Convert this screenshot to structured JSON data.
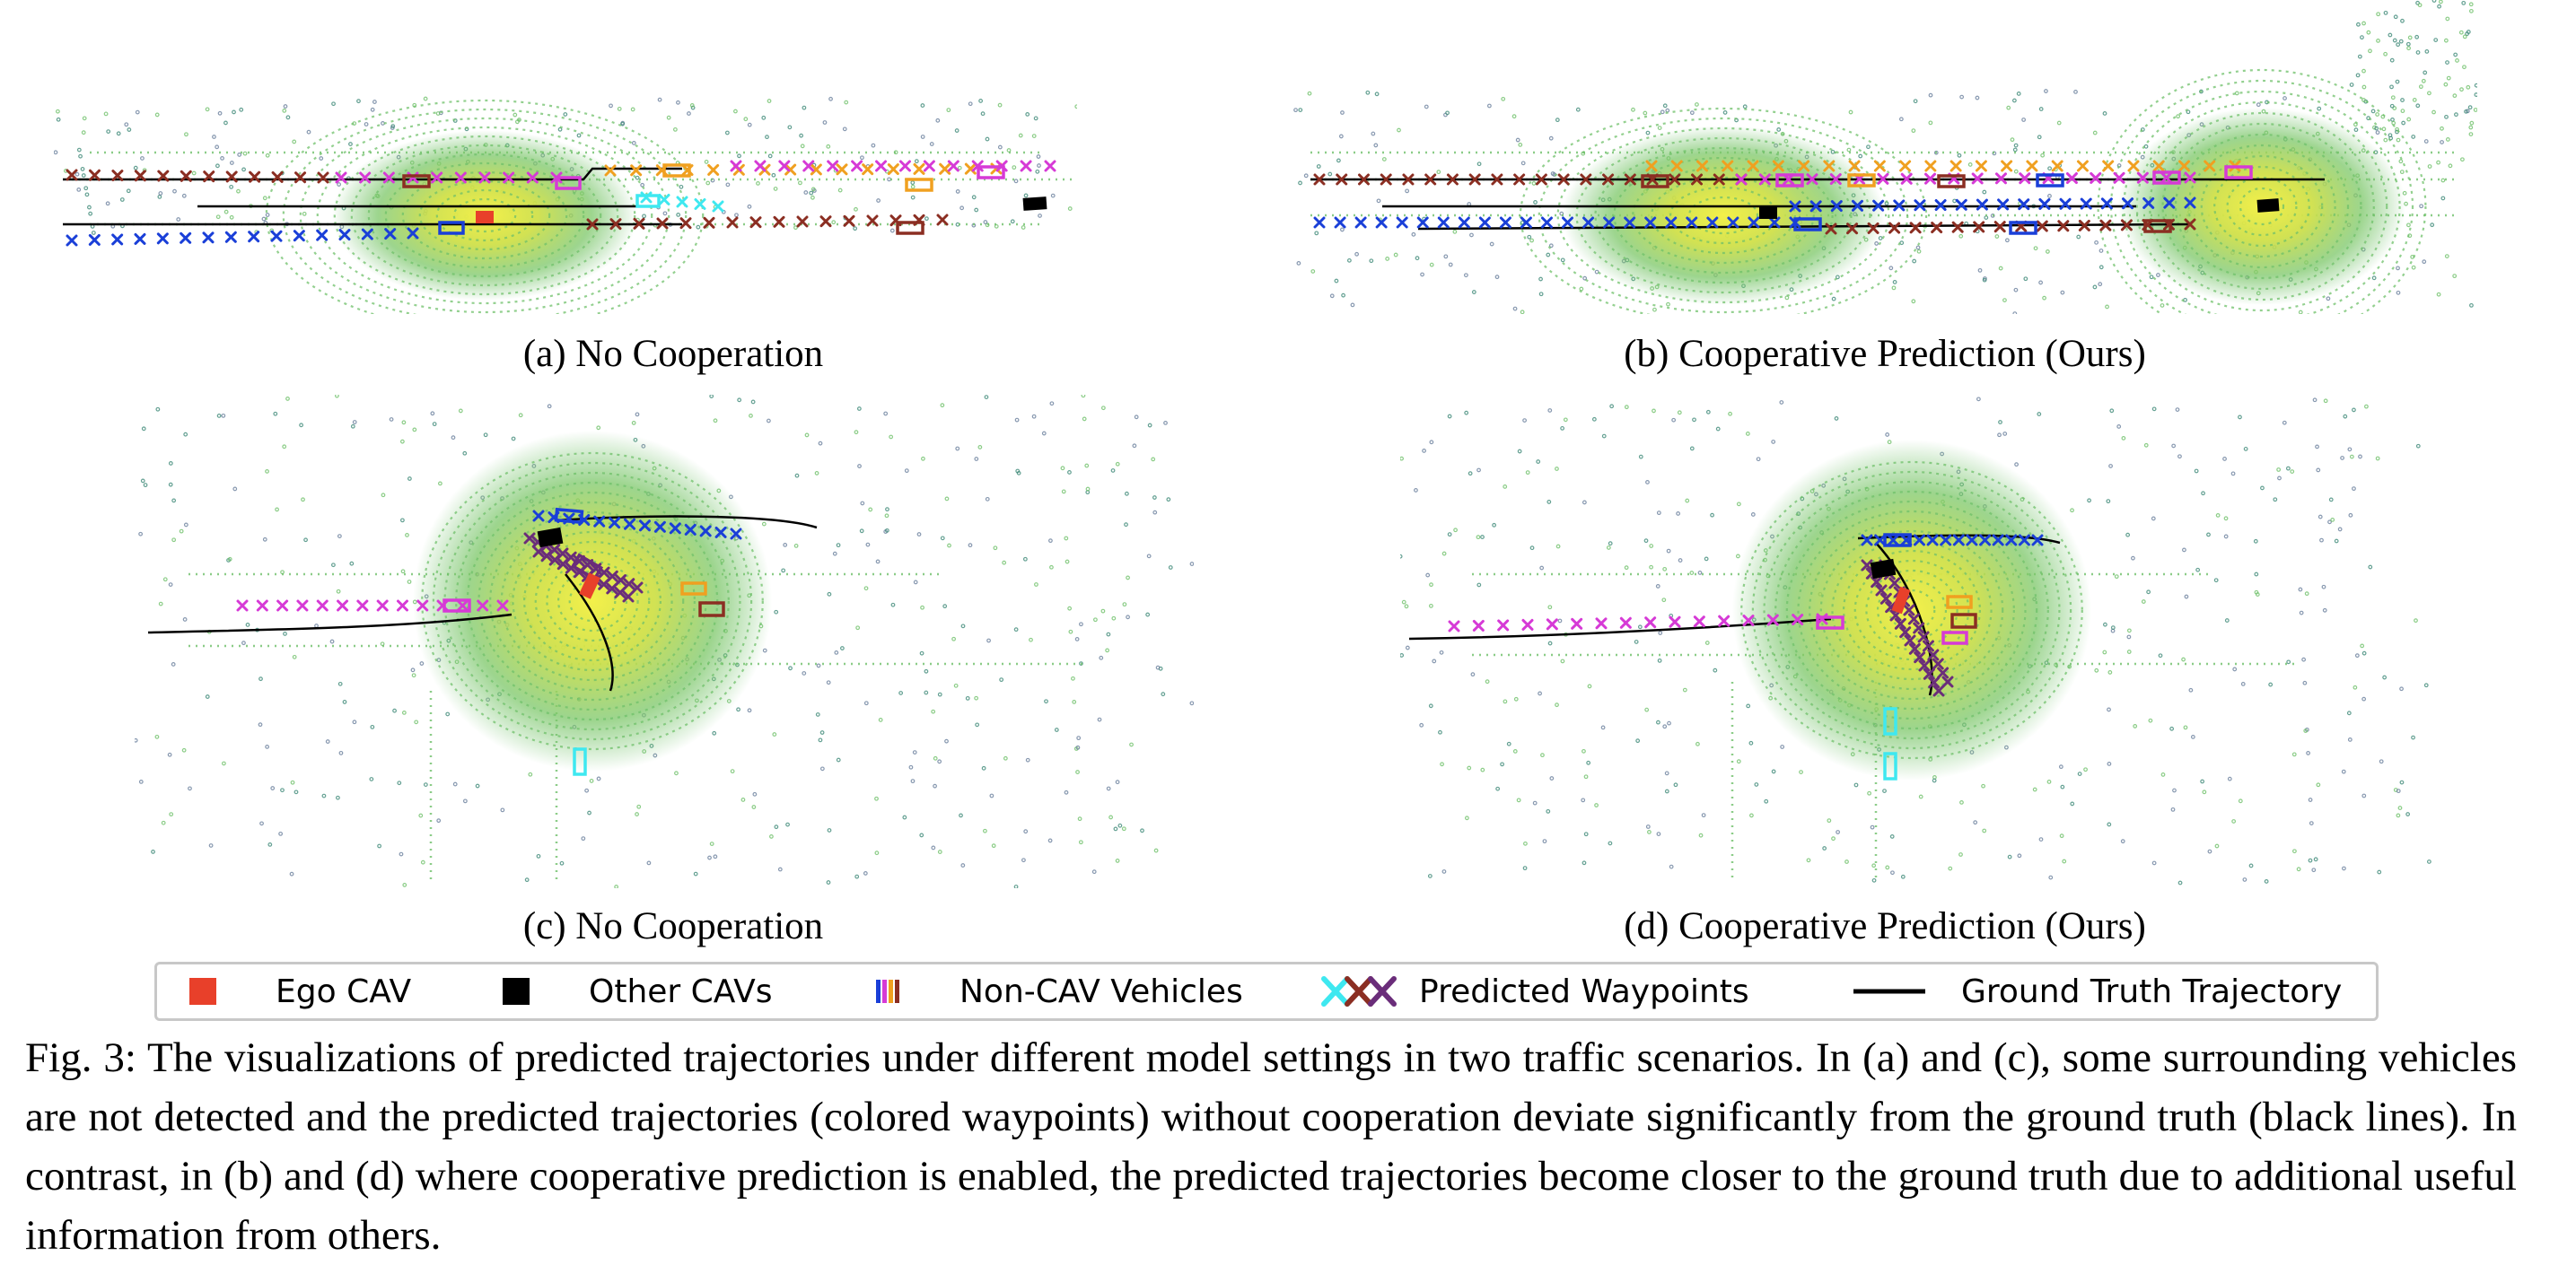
{
  "panels": [
    {
      "id": "a",
      "label": "(a) No Cooperation"
    },
    {
      "id": "b",
      "label": "(b) Cooperative Prediction (Ours)"
    },
    {
      "id": "c",
      "label": "(c) No Cooperation"
    },
    {
      "id": "d",
      "label": "(d) Cooperative Prediction (Ours)"
    }
  ],
  "legend": {
    "ego_cav": "Ego CAV",
    "other_cavs": "Other CAVs",
    "non_cav_vehicles": "Non-CAV Vehicles",
    "predicted_waypoints": "Predicted Waypoints",
    "ground_truth": "Ground Truth Trajectory"
  },
  "caption": "Fig. 3: The visualizations of predicted trajectories under different model settings in two traffic scenarios. In (a) and (c), some surrounding vehicles are not detected and the predicted trajectories (colored waypoints) without cooperation deviate significantly from the ground truth (black lines). In contrast, in (b) and (d) where cooperative prediction is enabled, the predicted trajectories become closer to the ground truth due to additional useful information from others.",
  "colors": {
    "ego": "#e8402a",
    "other_cav": "#000000",
    "gt_line": "#000000",
    "waypoint_blue": "#1a3fd8",
    "waypoint_magenta": "#d63ad6",
    "waypoint_orange": "#f0a020",
    "waypoint_brown": "#8b2e22",
    "waypoint_cyan": "#3ee8f0",
    "waypoint_purple": "#6a2d7a",
    "lidar_yellow": "#e3e84a",
    "lidar_green": "#6fc06a",
    "lidar_teal": "#3f8a78",
    "lidar_slate": "#6a7f9c"
  }
}
